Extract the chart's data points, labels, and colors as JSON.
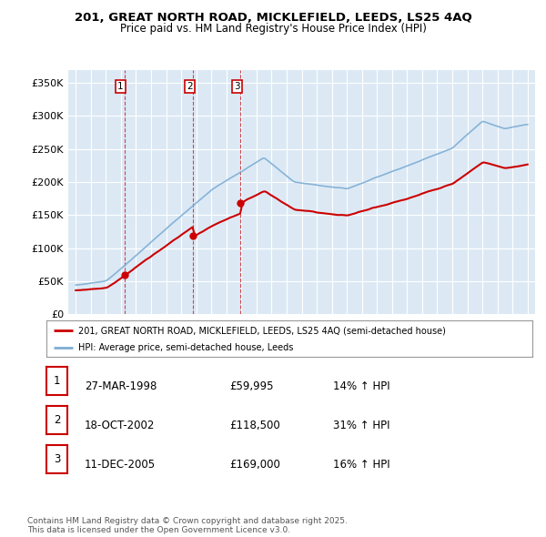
{
  "title_line1": "201, GREAT NORTH ROAD, MICKLEFIELD, LEEDS, LS25 4AQ",
  "title_line2": "Price paid vs. HM Land Registry's House Price Index (HPI)",
  "bg_color": "#dce9f5",
  "fig_bg_color": "#ffffff",
  "red_line_label": "201, GREAT NORTH ROAD, MICKLEFIELD, LEEDS, LS25 4AQ (semi-detached house)",
  "blue_line_label": "HPI: Average price, semi-detached house, Leeds",
  "sales": [
    {
      "num": 1,
      "date_x": 1998.23,
      "price": 59995,
      "label": "27-MAR-1998",
      "price_str": "£59,995",
      "pct": "14% ↑ HPI"
    },
    {
      "num": 2,
      "date_x": 2002.8,
      "price": 118500,
      "label": "18-OCT-2002",
      "price_str": "£118,500",
      "pct": "31% ↑ HPI"
    },
    {
      "num": 3,
      "date_x": 2005.95,
      "price": 169000,
      "label": "11-DEC-2005",
      "price_str": "£169,000",
      "pct": "16% ↑ HPI"
    }
  ],
  "yticks": [
    0,
    50000,
    100000,
    150000,
    200000,
    250000,
    300000,
    350000
  ],
  "ylim": [
    0,
    370000
  ],
  "xlim": [
    1994.5,
    2025.5
  ],
  "xticks": [
    1995,
    1996,
    1997,
    1998,
    1999,
    2000,
    2001,
    2002,
    2003,
    2004,
    2005,
    2006,
    2007,
    2008,
    2009,
    2010,
    2011,
    2012,
    2013,
    2014,
    2015,
    2016,
    2017,
    2018,
    2019,
    2020,
    2021,
    2022,
    2023,
    2024,
    2025
  ],
  "footnote": "Contains HM Land Registry data © Crown copyright and database right 2025.\nThis data is licensed under the Open Government Licence v3.0.",
  "red_color": "#cc0000",
  "blue_color": "#7dadd4",
  "vline_color": "#cc0000",
  "grid_color": "#ffffff"
}
